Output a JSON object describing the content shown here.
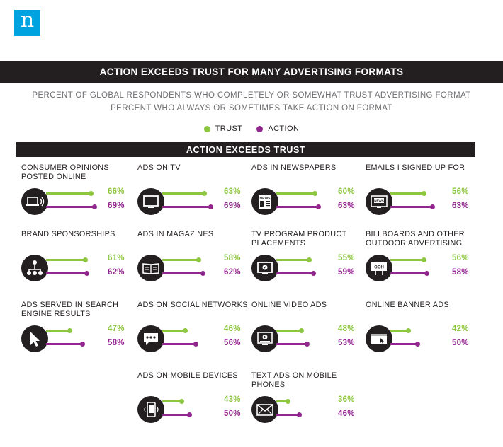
{
  "logo": {
    "text": "n"
  },
  "title": "ACTION EXCEEDS TRUST FOR MANY ADVERTISING FORMATS",
  "subtitles": [
    "PERCENT OF GLOBAL RESPONDENTS WHO COMPLETELY OR SOMEWHAT TRUST ADVERTISING FORMAT",
    "PERCENT WHO ALWAYS OR SOMETIMES TAKE ACTION ON FORMAT"
  ],
  "legend": [
    {
      "label": "TRUST",
      "color": "#8dc63f"
    },
    {
      "label": "ACTION",
      "color": "#92278f"
    }
  ],
  "section_title": "ACTION EXCEEDS TRUST",
  "colors": {
    "trust": "#8dc63f",
    "action": "#92278f",
    "dark": "#231f20",
    "brand": "#00a3e0"
  },
  "chart_data": {
    "type": "bar",
    "categories": [
      "CONSUMER OPINIONS POSTED ONLINE",
      "ADS ON TV",
      "ADS IN NEWSPAPERS",
      "EMAILS I SIGNED UP FOR",
      "BRAND SPONSORSHIPS",
      "ADS IN MAGAZINES",
      "TV PROGRAM PRODUCT PLACEMENTS",
      "BILLBOARDS AND OTHER OUTDOOR ADVERTISING",
      "ADS SERVED IN SEARCH ENGINE RESULTS",
      "ADS ON SOCIAL NETWORKS",
      "ONLINE VIDEO ADS",
      "ONLINE BANNER ADS",
      "ADS ON MOBILE DEVICES",
      "TEXT ADS ON MOBILE PHONES"
    ],
    "series": [
      {
        "name": "TRUST",
        "values": [
          66,
          63,
          60,
          56,
          61,
          58,
          55,
          56,
          47,
          46,
          48,
          42,
          43,
          36
        ]
      },
      {
        "name": "ACTION",
        "values": [
          69,
          69,
          63,
          63,
          62,
          62,
          59,
          58,
          58,
          56,
          53,
          50,
          50,
          46
        ]
      }
    ],
    "value_suffix": "%",
    "icons": [
      "laptop-speaker-icon",
      "tv-icon",
      "newspaper-icon",
      "email-news-icon",
      "network-icon",
      "magazine-icon",
      "tv-placement-icon",
      "billboard-icon",
      "cursor-icon",
      "chat-bubble-icon",
      "video-player-icon",
      "banner-icon",
      "mobile-phone-icon",
      "envelope-icon"
    ],
    "icon_texts": [
      "",
      "",
      "NEWS",
      "NEWS",
      "",
      "",
      "",
      "OOH",
      "",
      "",
      "",
      "",
      "",
      ""
    ],
    "ylim": [
      0,
      100
    ]
  }
}
